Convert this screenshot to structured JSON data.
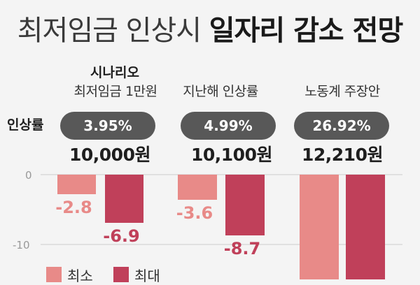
{
  "title": {
    "light": "최저임금 인상시",
    "bold": "일자리 감소 전망"
  },
  "scenario_header": "시나리오",
  "rate_row_label": "인상률",
  "scenarios": [
    {
      "label": "최저임금 1만원",
      "rate": "3.95%",
      "wage": "10,000원"
    },
    {
      "label": "지난해 인상률",
      "rate": "4.99%",
      "wage": "10,100원"
    },
    {
      "label": "노동계 주장안",
      "rate": "26.92%",
      "wage": "12,210원"
    }
  ],
  "legend": [
    {
      "label": "최소",
      "color": "#e88a88"
    },
    {
      "label": "최대",
      "color": "#c0405a"
    }
  ],
  "chart_data": {
    "type": "bar",
    "categories": [
      "최저임금 1만원",
      "지난해 인상률",
      "노동계 주장안"
    ],
    "series": [
      {
        "name": "최소",
        "values": [
          -2.8,
          -3.6,
          null
        ],
        "labels": [
          "-2.8",
          "-3.6",
          ""
        ]
      },
      {
        "name": "최대",
        "values": [
          -6.9,
          -8.7,
          null
        ],
        "labels": [
          "-6.9",
          "-8.7",
          ""
        ]
      }
    ],
    "y_ticks": [
      0,
      -10
    ],
    "y_tick_labels": [
      "0",
      "-10"
    ],
    "ylim": [
      -15,
      0
    ],
    "grid": true,
    "legend_position": "bottom-left",
    "title": "최저임금 인상시 일자리 감소 전망",
    "xlabel": "",
    "ylabel": ""
  }
}
